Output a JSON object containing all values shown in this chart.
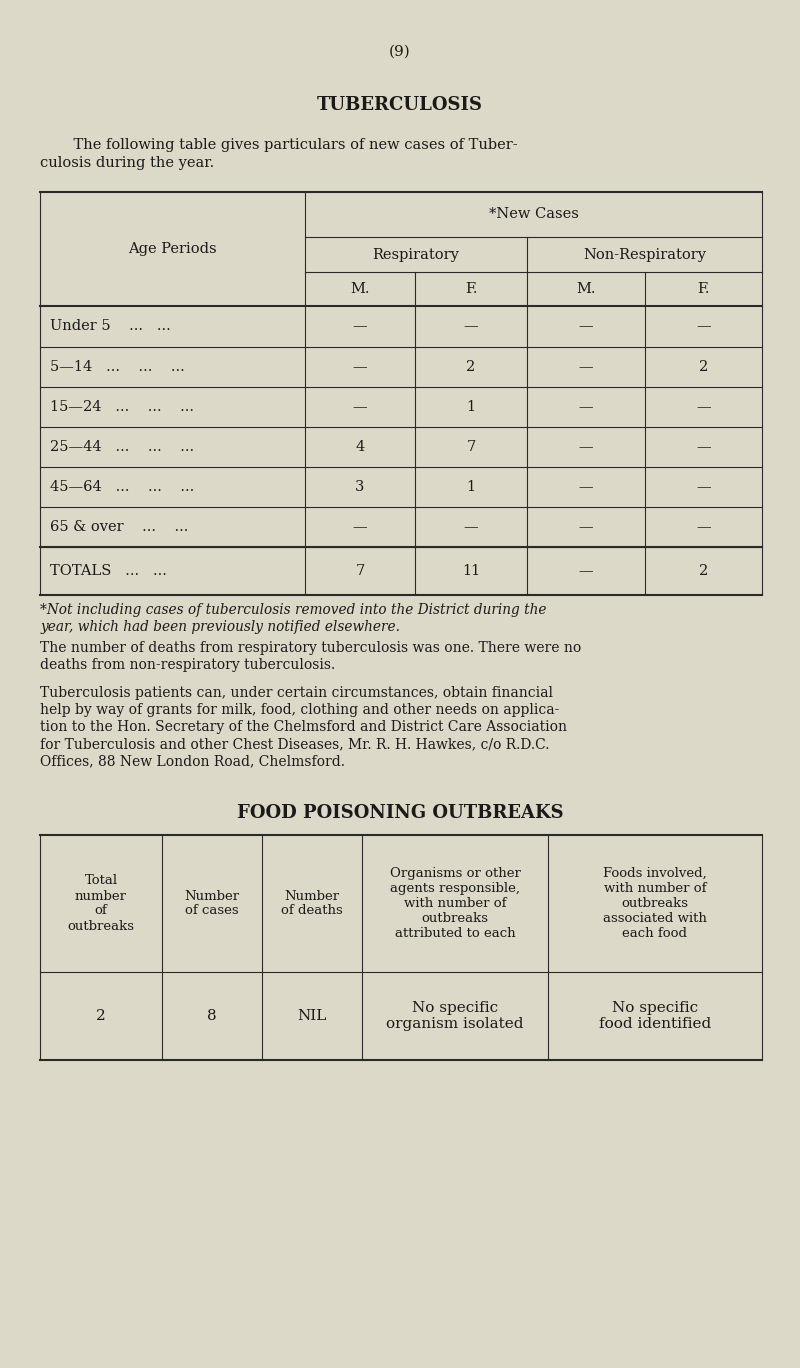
{
  "bg_color": "#ddd9c8",
  "text_color": "#1a1a1a",
  "page_number": "(9)",
  "title1": "TUBERCULOSIS",
  "intro_line1": "    The following table gives particulars of new cases of Tuber-",
  "intro_line2": "culosis during the year.",
  "tb_table": {
    "rows": [
      [
        "Under 5    ...   ...",
        "—",
        "—",
        "—",
        "—"
      ],
      [
        "5—14   ...    ...    ...",
        "—",
        "2",
        "—",
        "2"
      ],
      [
        "15—24   ...    ...    ...",
        "—",
        "1",
        "—",
        "—"
      ],
      [
        "25—44   ...    ...    ...",
        "4",
        "7",
        "—",
        "—"
      ],
      [
        "45—64   ...    ...    ...",
        "3",
        "1",
        "—",
        "—"
      ],
      [
        "65 & over    ...    ...",
        "—",
        "—",
        "—",
        "—"
      ]
    ],
    "totals_row": [
      "TOTALS   ...   ...",
      "7",
      "11",
      "—",
      "2"
    ]
  },
  "footnote_line1": "*Not including cases of tuberculosis removed into the District during the",
  "footnote_line2": "year, which had been previously notified elsewhere.",
  "para1_line1": "The number of deaths from respiratory tuberculosis was one. There were no",
  "para1_line2": "deaths from non-respiratory tuberculosis.",
  "para2_line1": "Tuberculosis patients can, under certain circumstances, obtain financial",
  "para2_line2": "help by way of grants for milk, food, clothing and other needs on applica-",
  "para2_line3": "tion to the Hon. Secretary of the Chelmsford and District Care Association",
  "para2_line4": "for Tuberculosis and other Chest Diseases, Mr. R. H. Hawkes, c/o R.D.C.",
  "para2_line5": "Offices, 88 New London Road, Chelmsford.",
  "title2": "FOOD POISONING OUTBREAKS",
  "fp_headers": [
    "Total\nnumber\nof\noutbreaks",
    "Number\nof cases",
    "Number\nof deaths",
    "Organisms or other\nagents responsible,\nwith number of\noutbreaks\nattributed to each",
    "Foods involved,\nwith number of\noutbreaks\nassociated with\neach food"
  ],
  "fp_data": [
    "2",
    "8",
    "NIL",
    "No specific\norganism isolated",
    "No specific\nfood identified"
  ]
}
